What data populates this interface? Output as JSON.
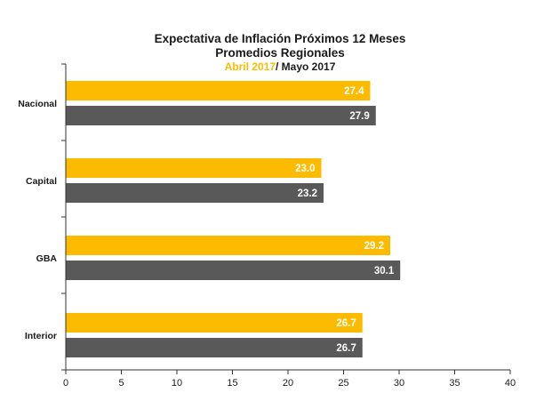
{
  "chart_data": {
    "type": "bar",
    "orientation": "horizontal",
    "title": "Expectativa de Inflación Próximos 12 Meses",
    "subtitle": "Promedios Regionales",
    "period_1": "Abril 2017",
    "period_separator": "/ ",
    "period_2": "Mayo 2017",
    "categories": [
      "Nacional",
      "Capital",
      "GBA",
      "Interior"
    ],
    "series": [
      {
        "name": "Abril 2017",
        "color": "#FDBB00",
        "values": [
          27.4,
          23.0,
          29.2,
          26.7
        ],
        "labels": [
          "27.4",
          "23.0",
          "29.2",
          "26.7"
        ]
      },
      {
        "name": "Mayo 2017",
        "color": "#595959",
        "values": [
          27.9,
          23.2,
          30.1,
          26.7
        ],
        "labels": [
          "27.9",
          "23.2",
          "30.1",
          "26.7"
        ]
      }
    ],
    "xlim": [
      0,
      40
    ],
    "xticks": [
      0,
      5,
      10,
      15,
      20,
      25,
      30,
      35,
      40
    ],
    "xtick_labels": [
      "0",
      "5",
      "10",
      "15",
      "20",
      "25",
      "30",
      "35",
      "40"
    ],
    "grid": false,
    "legend": "none",
    "xlabel": "",
    "ylabel": ""
  }
}
